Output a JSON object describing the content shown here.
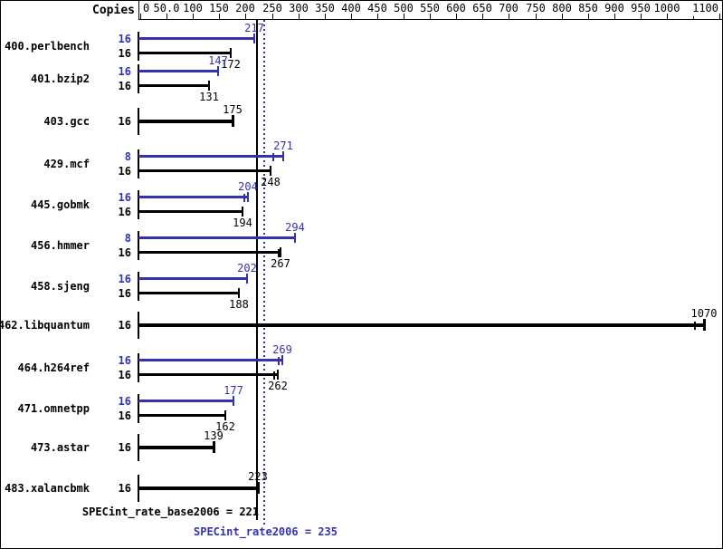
{
  "header": {
    "copies_label": "Copies"
  },
  "colors": {
    "peak_blue": "#3333b2",
    "base_black": "#000000"
  },
  "axis": {
    "min": 0,
    "max": 1100,
    "step": 50,
    "position": "top",
    "tick_values": [
      0,
      50,
      100,
      150,
      200,
      250,
      300,
      350,
      400,
      450,
      500,
      550,
      600,
      650,
      700,
      750,
      800,
      850,
      900,
      950,
      1000,
      1050,
      1100
    ],
    "tick_labels": [
      "0",
      "50.0",
      "100",
      "150",
      "200",
      "250",
      "300",
      "350",
      "400",
      "450",
      "500",
      "550",
      "600",
      "650",
      "700",
      "750",
      "800",
      "850",
      "900",
      "950",
      "1000",
      "",
      "1100"
    ]
  },
  "benchmarks": [
    {
      "name": "400.perlbench",
      "bars": [
        {
          "type": "peak",
          "copies": 16,
          "value": 217
        },
        {
          "type": "base",
          "copies": 16,
          "value": 172
        }
      ]
    },
    {
      "name": "401.bzip2",
      "bars": [
        {
          "type": "peak",
          "copies": 16,
          "value": 147
        },
        {
          "type": "base",
          "copies": 16,
          "value": 131
        }
      ]
    },
    {
      "name": "403.gcc",
      "bars": [
        {
          "type": "base-only",
          "copies": 16,
          "value": 175
        }
      ]
    },
    {
      "name": "429.mcf",
      "bars": [
        {
          "type": "peak",
          "copies": 8,
          "value": 271,
          "run_tick": 252
        },
        {
          "type": "base",
          "copies": 16,
          "value": 248
        }
      ]
    },
    {
      "name": "445.gobmk",
      "bars": [
        {
          "type": "peak",
          "copies": 16,
          "value": 204,
          "run_tick": 198
        },
        {
          "type": "base",
          "copies": 16,
          "value": 194
        }
      ]
    },
    {
      "name": "456.hmmer",
      "bars": [
        {
          "type": "peak",
          "copies": 8,
          "value": 294
        },
        {
          "type": "base",
          "copies": 16,
          "value": 267,
          "run_tick": 263
        }
      ]
    },
    {
      "name": "458.sjeng",
      "bars": [
        {
          "type": "peak",
          "copies": 16,
          "value": 202
        },
        {
          "type": "base",
          "copies": 16,
          "value": 188
        }
      ]
    },
    {
      "name": "462.libquantum",
      "bars": [
        {
          "type": "base-only",
          "copies": 16,
          "value": 1070,
          "run_tick": 1053
        }
      ]
    },
    {
      "name": "464.h264ref",
      "bars": [
        {
          "type": "peak",
          "copies": 16,
          "value": 269,
          "run_tick": 263
        },
        {
          "type": "base",
          "copies": 16,
          "value": 262,
          "run_tick": 255
        }
      ]
    },
    {
      "name": "471.omnetpp",
      "bars": [
        {
          "type": "peak",
          "copies": 16,
          "value": 177
        },
        {
          "type": "base",
          "copies": 16,
          "value": 162
        }
      ]
    },
    {
      "name": "473.astar",
      "bars": [
        {
          "type": "base-only",
          "copies": 16,
          "value": 139
        }
      ]
    },
    {
      "name": "483.xalancbmk",
      "bars": [
        {
          "type": "base-only",
          "copies": 16,
          "value": 223
        }
      ]
    }
  ],
  "summary": {
    "base_label": "SPECint_rate_base2006 = 221",
    "base_value": 221,
    "peak_label": "SPECint_rate2006 = 235",
    "peak_value": 235
  },
  "chart_data": {
    "type": "bar",
    "orientation": "horizontal",
    "title": "",
    "categories": [
      "400.perlbench",
      "401.bzip2",
      "403.gcc",
      "429.mcf",
      "445.gobmk",
      "456.hmmer",
      "458.sjeng",
      "462.libquantum",
      "464.h264ref",
      "471.omnetpp",
      "473.astar",
      "483.xalancbmk"
    ],
    "series": [
      {
        "name": "SPECint_rate2006 (peak)",
        "color": "#3333b2",
        "copies": [
          16,
          16,
          null,
          8,
          16,
          8,
          16,
          null,
          16,
          16,
          null,
          null
        ],
        "values": [
          217,
          147,
          null,
          271,
          204,
          294,
          202,
          null,
          269,
          177,
          null,
          null
        ]
      },
      {
        "name": "SPECint_rate_base2006 (base)",
        "color": "#000000",
        "copies": [
          16,
          16,
          16,
          16,
          16,
          16,
          16,
          16,
          16,
          16,
          16,
          16
        ],
        "values": [
          172,
          131,
          175,
          248,
          194,
          267,
          188,
          1070,
          262,
          162,
          139,
          223
        ]
      }
    ],
    "xlim": [
      0,
      1100
    ],
    "x_tick_step": 50,
    "axis_position": "top",
    "copies_column_header": "Copies",
    "reference_lines": [
      {
        "label": "SPECint_rate_base2006",
        "value": 221,
        "style": "solid",
        "color": "#000000"
      },
      {
        "label": "SPECint_rate2006",
        "value": 235,
        "style": "dotted",
        "color": "#3333b2"
      }
    ],
    "grid": false,
    "legend_position": "none"
  }
}
